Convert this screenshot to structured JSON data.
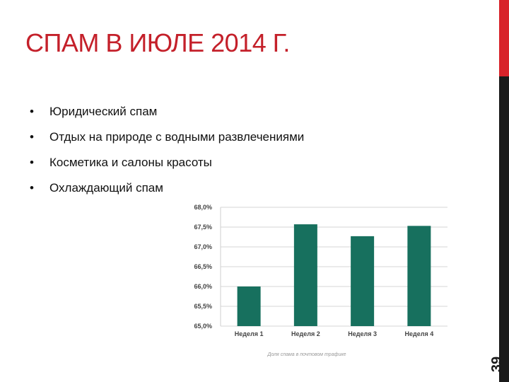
{
  "slide": {
    "title": "СПАМ В ИЮЛЕ 2014 Г.",
    "bullets": [
      "Юридический спам",
      "Отдых на природе с водными развлечениями",
      "Косметика и салоны красоты",
      "Охлаждающий спам"
    ],
    "bullet_symbol": "•",
    "page_number": "39",
    "colors": {
      "title": "#c4202a",
      "bar": "#17705e",
      "accent_red": "#d8232a",
      "accent_dark": "#1a1a1a"
    }
  },
  "chart_data": {
    "type": "bar",
    "categories": [
      "Неделя 1",
      "Неделя 2",
      "Неделя 3",
      "Неделя 4"
    ],
    "values": [
      66.0,
      67.57,
      67.27,
      67.53
    ],
    "yticks": [
      "65,0%",
      "65,5%",
      "66,0%",
      "66,5%",
      "67,0%",
      "67,5%",
      "68,0%"
    ],
    "ylim": [
      65.0,
      68.0
    ],
    "grid": true,
    "caption": "Доля спама в почтовом трафике",
    "title": "",
    "xlabel": "",
    "ylabel": ""
  }
}
